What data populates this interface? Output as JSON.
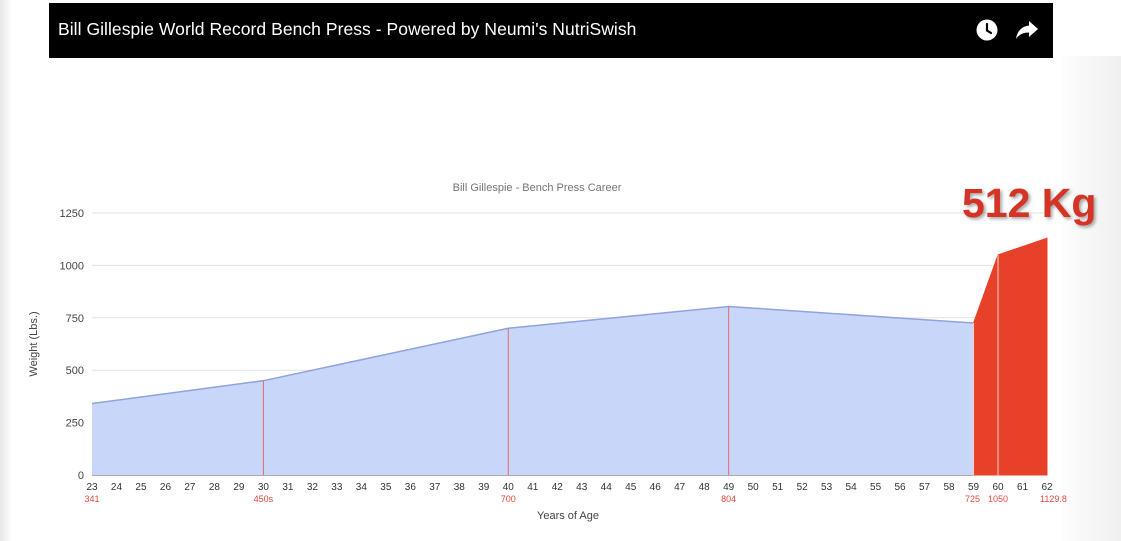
{
  "video_bar": {
    "title": "Bill Gillespie World Record Bench Press - Powered by Neumi's NutriSwish",
    "icons": [
      "clock-icon",
      "share-icon"
    ]
  },
  "badge": "512 Kg",
  "chart_data": {
    "type": "area",
    "title": "Bill Gillespie - Bench Press Career",
    "xlabel": "Years of Age",
    "ylabel": "Weight (Lbs.)",
    "ylim": [
      0,
      1250
    ],
    "yticks": [
      0,
      250,
      500,
      750,
      1000,
      1250
    ],
    "xlim": [
      23,
      62
    ],
    "x": [
      23,
      30,
      40,
      49,
      59,
      60,
      62
    ],
    "y": [
      341,
      450,
      700,
      804,
      725,
      1050,
      1129.8
    ],
    "point_labels": [
      "341",
      "450s",
      "700",
      "804",
      "725",
      "1050",
      "1129.8"
    ],
    "grid": true,
    "colors": {
      "area": "#c8d6fa",
      "line": "#8ea3df",
      "highlight": "#e8412a",
      "marker": "#e26b6b"
    }
  }
}
